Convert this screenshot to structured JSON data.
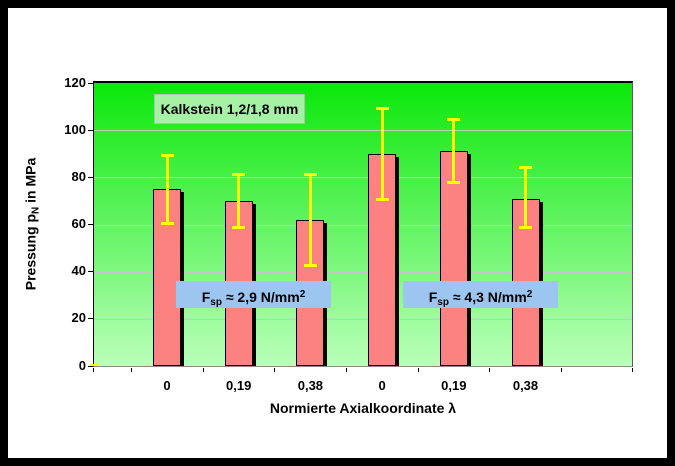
{
  "frame": {
    "border_color": "#000000",
    "background": "#FFFFFF"
  },
  "chart_data": {
    "type": "bar",
    "title_box": "Kalkstein 1,2/1,8 mm",
    "xlabel": "Normierte Axialkoordinate λ",
    "ylabel": {
      "pre": "Pressung p",
      "sub": "N",
      "post": " in MPa"
    },
    "categories": [
      "0",
      "0,19",
      "0,38",
      "0",
      "0,19",
      "0,38"
    ],
    "values": [
      75,
      70,
      62,
      90,
      91,
      71
    ],
    "error_bars": [
      {
        "low": 60,
        "high": 90
      },
      {
        "low": 58,
        "high": 82
      },
      {
        "low": 42,
        "high": 82
      },
      {
        "low": 70,
        "high": 110
      },
      {
        "low": 77,
        "high": 105
      },
      {
        "low": 58,
        "high": 85
      }
    ],
    "ylim": [
      0,
      120
    ],
    "yticks": [
      0,
      20,
      40,
      60,
      80,
      100,
      120
    ],
    "grid": "horizontal",
    "legend": "none",
    "annotations": [
      {
        "pre": "F",
        "sub": "sp",
        "mid": " ≈ 2,9 N/mm",
        "sup": "2"
      },
      {
        "pre": "F",
        "sub": "sp",
        "mid": " ≈ 4,3 N/mm",
        "sup": "2"
      }
    ],
    "colors": {
      "bar_fill": "#FC8181",
      "bar_border": "#000000",
      "bar_shadow": "#000000",
      "error_bar": "#FFFF00",
      "plot_gradient_top": "#0BE80B",
      "plot_gradient_bottom": "#BAFFBA",
      "gridline": "#C6C6C6",
      "title_box_bg": "#A5F2A5",
      "title_box_border": "#B9B9B9",
      "annotation_bg": "#9CC6F0",
      "text": "#000000"
    }
  }
}
